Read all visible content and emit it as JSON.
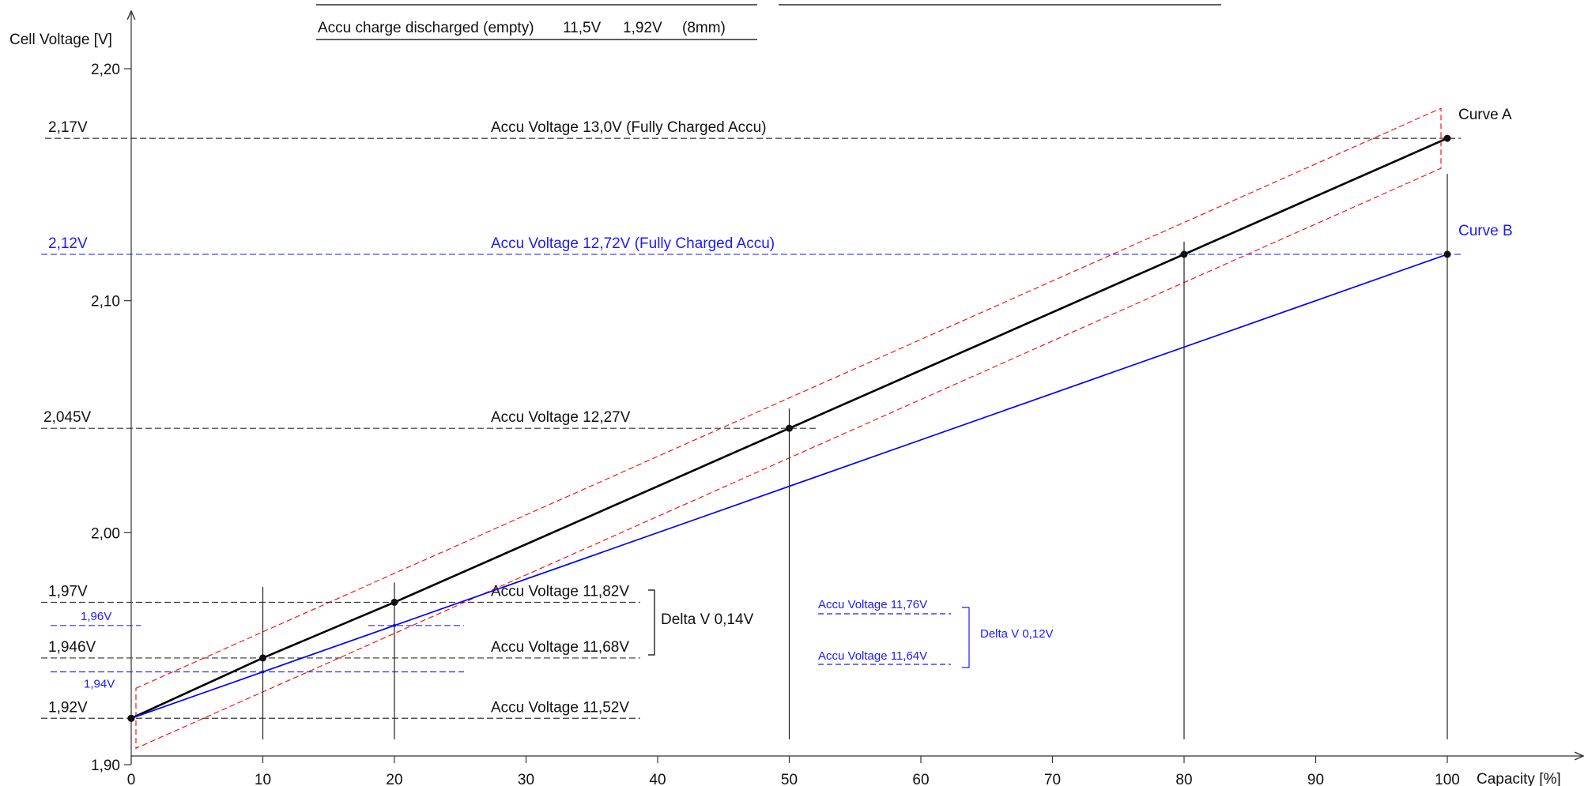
{
  "chart_data": {
    "type": "line",
    "xlabel": "Capacity [%]",
    "ylabel": "Cell Voltage [V]",
    "xlim": [
      0,
      100
    ],
    "ylim": [
      1.9,
      2.2
    ],
    "x_ticks": [
      "0",
      "10",
      "20",
      "30",
      "40",
      "50",
      "60",
      "70",
      "80",
      "90",
      "100"
    ],
    "y_ticks": [
      "1,90",
      "2,00",
      "2,10",
      "2,20"
    ],
    "series": [
      {
        "name": "Curve A",
        "color": "#000000",
        "x": [
          0,
          10,
          20,
          50,
          80,
          100
        ],
        "y": [
          1.92,
          1.946,
          1.97,
          2.045,
          2.12,
          2.17
        ]
      },
      {
        "name": "Curve B",
        "color": "#0000ff",
        "x": [
          0,
          10,
          20,
          100
        ],
        "y": [
          1.92,
          1.94,
          1.96,
          2.12
        ]
      }
    ],
    "tolerance_band_color": "#ff0000",
    "reference_lines": [
      {
        "y": 2.17,
        "label": "2,17V",
        "text": "Accu Voltage 13,0V (Fully Charged Accu)",
        "color": "#000000"
      },
      {
        "y": 2.12,
        "label": "2,12V",
        "text": "Accu Voltage 12,72V (Fully Charged Accu)",
        "color": "#0000ff"
      },
      {
        "y": 2.045,
        "label": "2,045V",
        "text": "Accu Voltage 12,27V",
        "color": "#000000"
      },
      {
        "y": 1.97,
        "label": "1,97V",
        "text": "Accu Voltage 11,82V",
        "color": "#000000"
      },
      {
        "y": 1.946,
        "label": "1,946V",
        "text": "Accu Voltage 11,68V",
        "color": "#000000"
      },
      {
        "y": 1.92,
        "label": "1,92V",
        "text": "Accu Voltage 11,52V",
        "color": "#000000"
      },
      {
        "y": 1.96,
        "label": "1,96V",
        "text": "",
        "color": "#0000ff"
      },
      {
        "y": 1.94,
        "label": "1,94V",
        "text": "",
        "color": "#0000ff"
      }
    ],
    "annotations": {
      "curve_a": "Curve A",
      "curve_b": "Curve B",
      "delta_a": "Delta V 0,14V",
      "delta_b": "Delta V 0,12V",
      "blue_upper": "Accu Voltage 11,76V",
      "blue_lower": "Accu Voltage 11,64V"
    },
    "legend_table": {
      "row": [
        "Accu charge discharged (empty)",
        "11,5V",
        "1,92V",
        "(8mm)"
      ]
    }
  }
}
